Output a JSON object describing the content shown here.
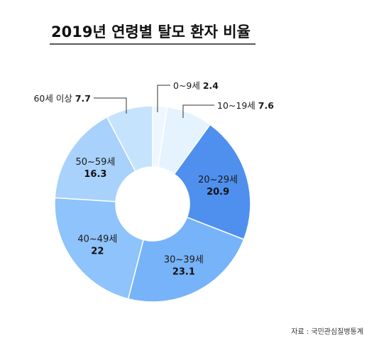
{
  "chart_data": {
    "type": "pie",
    "style": "donut",
    "title": "2019년 연령별 탈모 환자 비율",
    "categories": [
      "0~9세",
      "10~19세",
      "20~29세",
      "30~39세",
      "40~49세",
      "50~59세",
      "60세 이상"
    ],
    "values": [
      2.4,
      7.6,
      20.9,
      23.1,
      22,
      16.3,
      7.7
    ],
    "colors": [
      "#eef6fe",
      "#e4f3fe",
      "#4f90ee",
      "#77b3f8",
      "#8ec3fb",
      "#a8d2fc",
      "#c6e3fd"
    ],
    "value_labels": [
      "2.4",
      "7.6",
      "20.9",
      "23.1",
      "22",
      "16.3",
      "7.7"
    ],
    "source": "자료 : 국민관심질병통계"
  }
}
